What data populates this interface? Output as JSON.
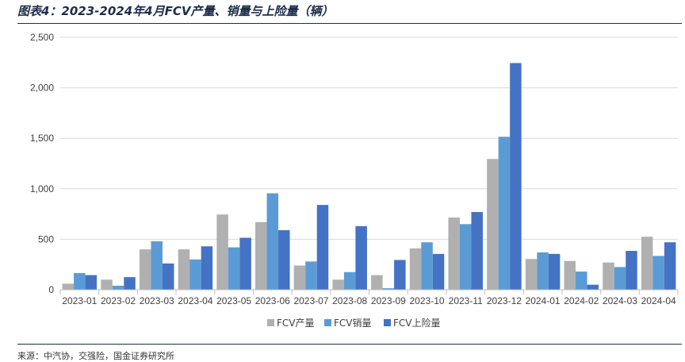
{
  "title": "图表4：2023-2024年4月FCV产量、销量与上险量（辆）",
  "source": "来源：中汽协，交强险，国金证券研究所",
  "colors": {
    "production": "#b0b0b0",
    "sales": "#5b9bd5",
    "insurance": "#4472c4"
  },
  "chart_data": {
    "type": "bar",
    "title": "图表4：2023-2024年4月FCV产量、销量与上险量（辆）",
    "xlabel": "",
    "ylabel": "",
    "categories": [
      "2023-01",
      "2023-02",
      "2023-03",
      "2023-04",
      "2023-05",
      "2023-06",
      "2023-07",
      "2023-08",
      "2023-09",
      "2023-10",
      "2023-11",
      "2023-12",
      "2024-01",
      "2024-02",
      "2024-03",
      "2024-04"
    ],
    "yticks": [
      "0",
      "500",
      "1,000",
      "1,500",
      "2,000",
      "2,500"
    ],
    "ylim": [
      0,
      2500
    ],
    "grid": true,
    "legend": "bottom",
    "series": [
      {
        "name": "FCV产量",
        "values": [
          60,
          100,
          400,
          400,
          745,
          670,
          240,
          100,
          145,
          410,
          715,
          1295,
          305,
          285,
          270,
          525
        ]
      },
      {
        "name": "FCV销量",
        "values": [
          165,
          40,
          480,
          300,
          420,
          955,
          280,
          175,
          15,
          470,
          650,
          1515,
          370,
          180,
          225,
          335
        ]
      },
      {
        "name": "FCV上险量",
        "values": [
          145,
          125,
          260,
          430,
          515,
          590,
          840,
          630,
          295,
          355,
          770,
          2245,
          355,
          50,
          385,
          470
        ]
      }
    ]
  }
}
